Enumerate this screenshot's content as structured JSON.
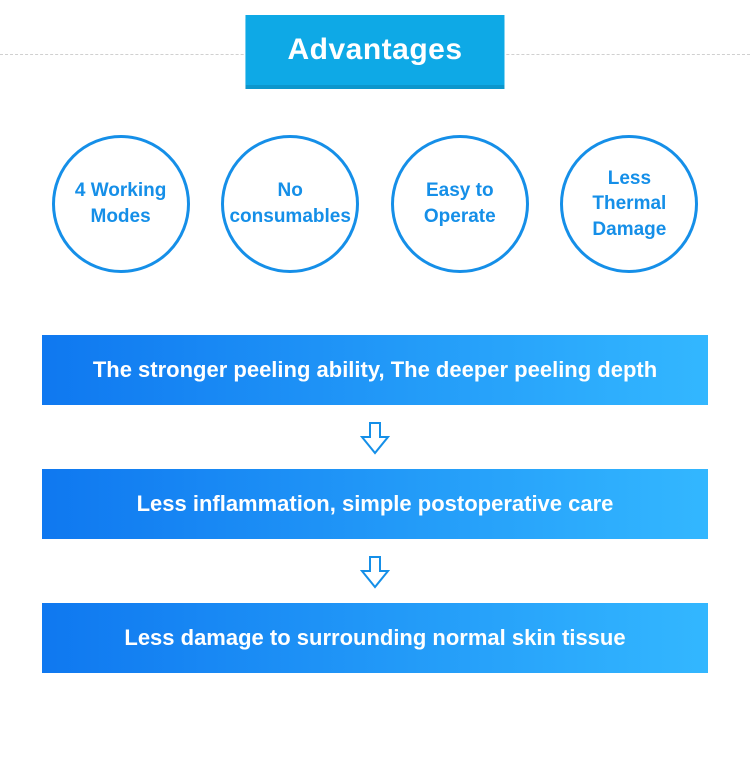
{
  "title": "Advantages",
  "title_bg": "#0ea9e6",
  "title_shadow": "#0c96cc",
  "title_color": "#ffffff",
  "dash_color": "#d0d0d0",
  "circle_border": "#158fe8",
  "circle_text_color": "#158fe8",
  "circles": [
    {
      "label": "4 Working Modes"
    },
    {
      "label": "No consumables"
    },
    {
      "label": "Easy to Operate"
    },
    {
      "label": "Less Thermal Damage"
    }
  ],
  "banner_gradient_from": "#0f78f0",
  "banner_gradient_to": "#33b7ff",
  "banner_text_color": "#ffffff",
  "arrow_stroke": "#158fe8",
  "arrow_width": 34,
  "arrow_height": 34,
  "banners": [
    {
      "text": "The stronger peeling ability, The deeper peeling depth"
    },
    {
      "text": "Less inflammation, simple postoperative care"
    },
    {
      "text": "Less damage to surrounding normal skin tissue"
    }
  ]
}
